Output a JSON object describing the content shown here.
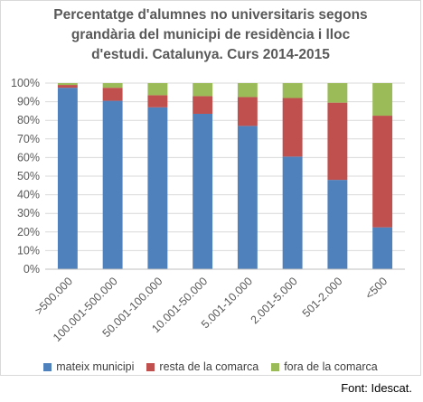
{
  "chart_data": {
    "type": "bar",
    "stacked": true,
    "title_lines": [
      "Percentatge d'alumnes no universitaris segons",
      "grandària del municipi de residència i lloc",
      "d'estudi. Catalunya. Curs 2014-2015"
    ],
    "categories": [
      ">500.000",
      "100.001-500.000",
      "50.001-100.000",
      "10.001-50.000",
      "5.001-10.000",
      "2.001-5.000",
      "501-2.000",
      "<500"
    ],
    "y_ticks": [
      "0%",
      "10%",
      "20%",
      "30%",
      "40%",
      "50%",
      "60%",
      "70%",
      "80%",
      "90%",
      "100%"
    ],
    "ylim": [
      0,
      100
    ],
    "grid": true,
    "legend_position": "bottom",
    "series": [
      {
        "name": "mateix municipi",
        "color": "#4f81bd",
        "values": [
          97.5,
          90.5,
          87,
          83.5,
          77,
          60.5,
          48,
          22.5
        ]
      },
      {
        "name": "resta de la comarca",
        "color": "#c0504d",
        "values": [
          1.5,
          7,
          6.5,
          9.5,
          15.5,
          31.5,
          41.5,
          60
        ]
      },
      {
        "name": "fora de la comarca",
        "color": "#9bbb59",
        "values": [
          1,
          2.5,
          6.5,
          7,
          7.5,
          8,
          10.5,
          17.5
        ]
      }
    ]
  },
  "source": "Font: Idescat."
}
